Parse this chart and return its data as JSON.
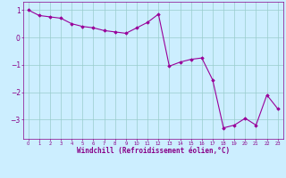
{
  "x": [
    0,
    1,
    2,
    3,
    4,
    5,
    6,
    7,
    8,
    9,
    10,
    11,
    12,
    13,
    14,
    15,
    16,
    17,
    18,
    19,
    20,
    21,
    22,
    23
  ],
  "y": [
    1.0,
    0.8,
    0.75,
    0.7,
    0.5,
    0.4,
    0.35,
    0.25,
    0.2,
    0.15,
    0.35,
    0.55,
    0.85,
    -1.05,
    -0.9,
    -0.8,
    -0.75,
    -1.55,
    -3.3,
    -3.2,
    -2.95,
    -3.2,
    -2.1,
    -2.6
  ],
  "line_color": "#990099",
  "marker": "D",
  "markersize": 1.8,
  "linewidth": 0.8,
  "xlabel": "Windchill (Refroidissement éolien,°C)",
  "xlabel_fontsize": 5.5,
  "xlabel_color": "#880088",
  "tick_color": "#880088",
  "bg_color": "#cceeff",
  "grid_color": "#99cccc",
  "xlim": [
    -0.5,
    23.5
  ],
  "ylim": [
    -3.7,
    1.3
  ],
  "yticks": [
    -3,
    -2,
    -1,
    0,
    1
  ],
  "xticks": [
    0,
    1,
    2,
    3,
    4,
    5,
    6,
    7,
    8,
    9,
    10,
    11,
    12,
    13,
    14,
    15,
    16,
    17,
    18,
    19,
    20,
    21,
    22,
    23
  ]
}
